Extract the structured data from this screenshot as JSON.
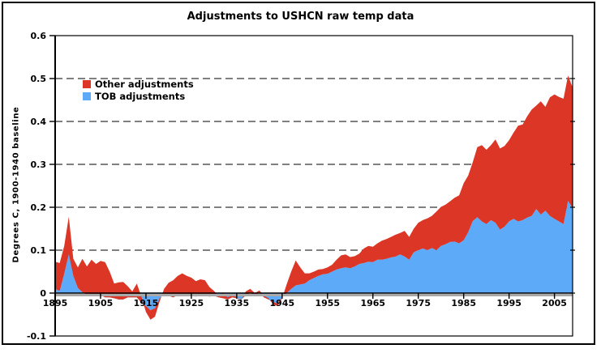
{
  "chart_data": {
    "type": "area",
    "stacked": true,
    "title": "Adjustments to USHCN raw temp data",
    "ylabel": "Degrees C, 1900-1940 baseline",
    "xlabel": "",
    "x_range": [
      1895,
      2009
    ],
    "x_step": 1,
    "x_ticks": [
      1895,
      1905,
      1915,
      1925,
      1935,
      1945,
      1955,
      1965,
      1975,
      1985,
      1995,
      2005
    ],
    "y_ticks": [
      {
        "value": 0.6,
        "label": "0.6"
      },
      {
        "value": 0.5,
        "label": "0.5"
      },
      {
        "value": 0.4,
        "label": "0.4"
      },
      {
        "value": 0.3,
        "label": "0.3"
      },
      {
        "value": 0.2,
        "label": "0.2"
      },
      {
        "value": 0.1,
        "label": "0.1"
      },
      {
        "value": 0,
        "label": "0"
      },
      {
        "value": -0.1,
        "label": "-0.1"
      }
    ],
    "ylim": [
      -0.1,
      0.6
    ],
    "grid": "horizontal-dashed",
    "legend_position": "inside-top-left",
    "series": [
      {
        "name": "TOB adjustments",
        "color": "#5caaf8",
        "values": [
          0.01,
          0.005,
          0.045,
          0.09,
          0.04,
          0.012,
          0.002,
          -0.004,
          -0.006,
          -0.002,
          -0.005,
          -0.01,
          -0.01,
          -0.012,
          -0.015,
          -0.015,
          -0.01,
          -0.01,
          -0.01,
          -0.022,
          -0.03,
          -0.04,
          -0.035,
          -0.012,
          -0.002,
          -0.006,
          -0.01,
          -0.005,
          -0.002,
          -0.004,
          -0.005,
          -0.008,
          -0.005,
          -0.006,
          -0.008,
          -0.006,
          -0.01,
          -0.012,
          -0.015,
          -0.01,
          -0.012,
          -0.015,
          -0.005,
          0.0,
          -0.005,
          0.0,
          -0.01,
          -0.015,
          -0.02,
          -0.025,
          -0.01,
          0.0,
          0.01,
          0.018,
          0.02,
          0.022,
          0.03,
          0.035,
          0.04,
          0.044,
          0.045,
          0.05,
          0.055,
          0.058,
          0.06,
          0.058,
          0.062,
          0.068,
          0.07,
          0.073,
          0.072,
          0.078,
          0.078,
          0.08,
          0.083,
          0.085,
          0.09,
          0.085,
          0.078,
          0.095,
          0.1,
          0.104,
          0.1,
          0.105,
          0.1,
          0.11,
          0.114,
          0.119,
          0.12,
          0.116,
          0.123,
          0.142,
          0.168,
          0.177,
          0.167,
          0.161,
          0.17,
          0.164,
          0.148,
          0.155,
          0.167,
          0.173,
          0.167,
          0.17,
          0.176,
          0.18,
          0.196,
          0.183,
          0.192,
          0.18,
          0.173,
          0.167,
          0.161,
          0.215,
          0.198
        ]
      },
      {
        "name": "Other adjustments",
        "color": "#dc3626",
        "values": [
          0.063,
          0.065,
          0.065,
          0.088,
          0.04,
          0.048,
          0.078,
          0.066,
          0.084,
          0.07,
          0.08,
          0.082,
          0.06,
          0.034,
          0.04,
          0.041,
          0.026,
          0.014,
          0.032,
          0.014,
          -0.014,
          -0.022,
          -0.02,
          -0.008,
          0.012,
          0.03,
          0.04,
          0.045,
          0.048,
          0.044,
          0.041,
          0.036,
          0.037,
          0.036,
          0.022,
          0.011,
          0.004,
          0.012,
          0.005,
          0.006,
          0.002,
          -0.001,
          0.009,
          0.01,
          0.005,
          0.006,
          0.004,
          0.003,
          -0.006,
          -0.005,
          -0.002,
          0.02,
          0.04,
          0.058,
          0.04,
          0.024,
          0.016,
          0.015,
          0.015,
          0.012,
          0.015,
          0.016,
          0.023,
          0.03,
          0.03,
          0.026,
          0.024,
          0.024,
          0.034,
          0.037,
          0.036,
          0.038,
          0.044,
          0.046,
          0.048,
          0.051,
          0.05,
          0.06,
          0.053,
          0.055,
          0.064,
          0.066,
          0.074,
          0.075,
          0.09,
          0.091,
          0.092,
          0.095,
          0.102,
          0.112,
          0.133,
          0.132,
          0.137,
          0.163,
          0.178,
          0.173,
          0.175,
          0.194,
          0.189,
          0.188,
          0.189,
          0.201,
          0.223,
          0.223,
          0.236,
          0.248,
          0.241,
          0.264,
          0.242,
          0.276,
          0.29,
          0.29,
          0.292,
          0.292,
          0.281
        ]
      }
    ]
  },
  "legend": [
    {
      "label": "Other adjustments",
      "color": "#dc3626"
    },
    {
      "label": "TOB adjustments",
      "color": "#5caaf8"
    }
  ],
  "colors": {
    "background": "#ffffff",
    "axis": "#000000",
    "zero_line_shadow": "#a9a9a9"
  }
}
